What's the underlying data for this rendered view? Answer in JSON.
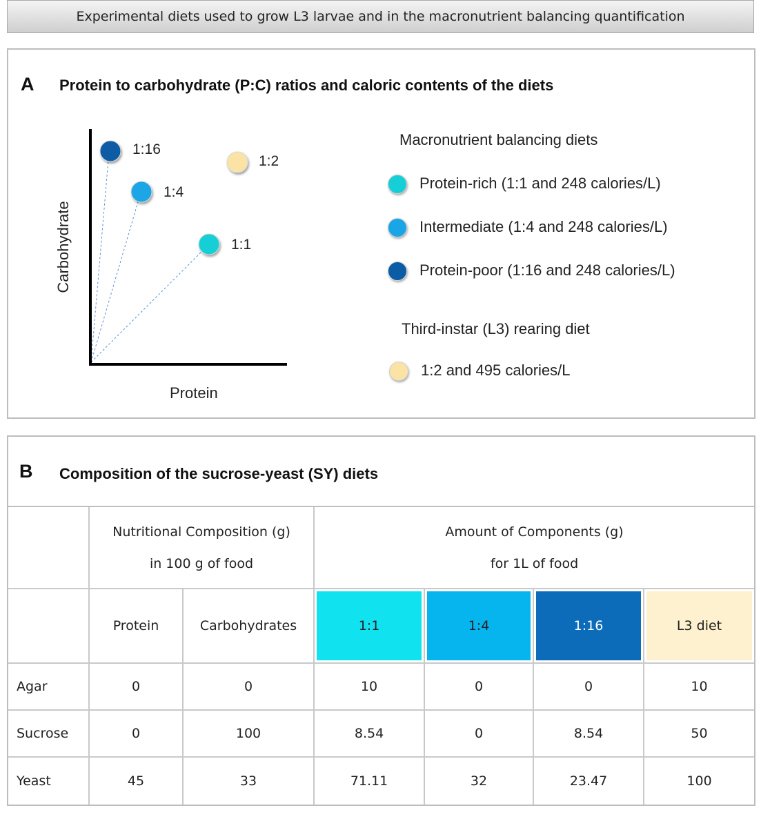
{
  "title": "Experimental diets used to grow L3 larvae and in the macronutrient balancing quantification",
  "panel_a": {
    "letter": "A",
    "heading": "Protein to carbohydrate (P:C) ratios and caloric contents of the diets",
    "y_axis_label": "Carbohydrate",
    "x_axis_label": "Protein",
    "points": [
      {
        "label": "1:16",
        "color": "#0a5ca5"
      },
      {
        "label": "1:2",
        "color": "#fbe3a6"
      },
      {
        "label": "1:4",
        "color": "#1aa6e6"
      },
      {
        "label": "1:1",
        "color": "#16cfd6"
      }
    ],
    "legend_group1_title": "Macronutrient balancing diets",
    "legend_group1": [
      {
        "text": "Protein-rich (1:1 and 248 calories/L)",
        "color": "#16cfd6"
      },
      {
        "text": "Intermediate (1:4 and 248 calories/L)",
        "color": "#1aa6e6"
      },
      {
        "text": "Protein-poor (1:16 and 248 calories/L)",
        "color": "#0a5ca5"
      }
    ],
    "legend_group2_title": "Third-instar (L3) rearing diet",
    "legend_group2": [
      {
        "text": "1:2 and 495 calories/L",
        "color": "#fbe3a6"
      }
    ]
  },
  "panel_b": {
    "letter": "B",
    "heading": "Composition of the sucrose-yeast (SY) diets",
    "group_header_1_line1": "Nutritional Composition (g)",
    "group_header_1_line2": "in 100 g of food",
    "group_header_2_line1": "Amount of Components (g)",
    "group_header_2_line2": "for 1L of food",
    "columns": [
      "Protein",
      "Carbohydrates",
      "1:1",
      "1:4",
      "1:16",
      "L3 diet"
    ],
    "diet_colors": [
      "#10e2f0",
      "#06b4ee",
      "#0d6cba",
      "#fdf1cf"
    ],
    "rows": [
      {
        "name": "Agar",
        "values": [
          "0",
          "0",
          "10",
          "0",
          "0",
          "10"
        ]
      },
      {
        "name": "Sucrose",
        "values": [
          "0",
          "100",
          "8.54",
          "0",
          "8.54",
          "50"
        ]
      },
      {
        "name": "Yeast",
        "values": [
          "45",
          "33",
          "71.11",
          "32",
          "23.47",
          "100"
        ]
      }
    ]
  }
}
